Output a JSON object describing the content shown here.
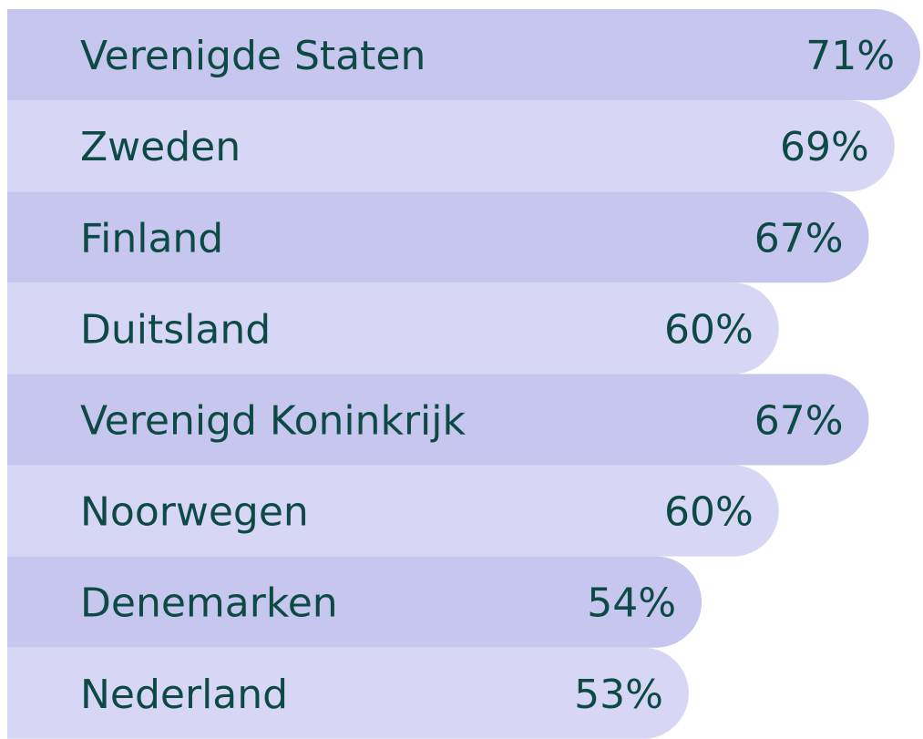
{
  "chart_data": {
    "type": "bar",
    "orientation": "horizontal",
    "categories": [
      "Verenigde Staten",
      "Zweden",
      "Finland",
      "Duitsland",
      "Verenigd Koninkrijk",
      "Noorwegen",
      "Denemarken",
      "Nederland"
    ],
    "values": [
      71,
      69,
      67,
      60,
      67,
      60,
      54,
      53
    ],
    "value_labels": [
      "71%",
      "69%",
      "67%",
      "60%",
      "67%",
      "60%",
      "54%",
      "53%"
    ],
    "colors": [
      "#c6c6ef",
      "#d7d7f5"
    ]
  }
}
